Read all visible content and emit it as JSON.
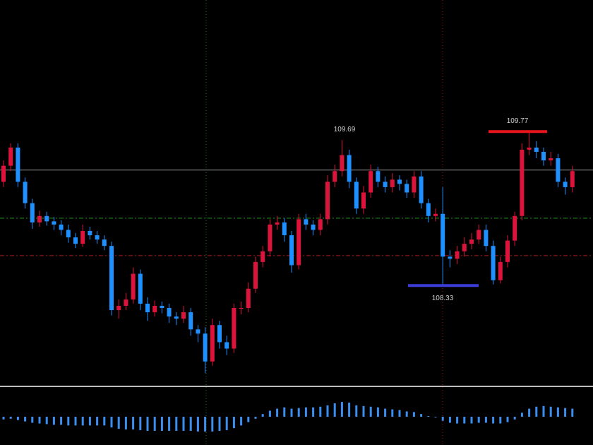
{
  "chart_data": {
    "type": "candlestick",
    "up_color": "#dc143c",
    "down_color": "#1e90ff",
    "ylim": [
      107.4,
      111.0
    ],
    "open": [
      109.3,
      109.45,
      109.62,
      109.3,
      109.1,
      108.92,
      108.98,
      108.93,
      108.9,
      108.85,
      108.78,
      108.72,
      108.84,
      108.8,
      108.76,
      108.7,
      108.1,
      108.14,
      108.2,
      108.44,
      108.16,
      108.08,
      108.14,
      108.12,
      108.04,
      108.02,
      108.08,
      107.92,
      107.88,
      107.62,
      107.96,
      107.8,
      107.74,
      108.12,
      108.12,
      108.3,
      108.55,
      108.65,
      108.9,
      108.92,
      108.8,
      108.52,
      108.95,
      108.9,
      108.85,
      108.95,
      109.3,
      109.4,
      109.55,
      109.3,
      109.05,
      109.2,
      109.4,
      109.3,
      109.25,
      109.32,
      109.28,
      109.2,
      109.35,
      109.1,
      108.98,
      109.0,
      108.6,
      108.58,
      108.65,
      108.72,
      108.76,
      108.85,
      108.7,
      108.38,
      108.55,
      108.75,
      108.98,
      109.6,
      109.62,
      109.58,
      109.5,
      109.52,
      109.3,
      109.25
    ],
    "high": [
      109.5,
      109.66,
      109.66,
      109.34,
      109.14,
      109.03,
      109.02,
      108.97,
      108.94,
      108.9,
      108.82,
      108.9,
      108.88,
      108.84,
      108.8,
      108.74,
      108.2,
      108.26,
      108.5,
      108.48,
      108.22,
      108.19,
      108.18,
      108.16,
      108.08,
      108.14,
      108.12,
      107.96,
      107.94,
      108.02,
      108.0,
      107.86,
      108.16,
      108.18,
      108.36,
      108.6,
      108.7,
      108.95,
      108.98,
      108.96,
      108.84,
      109.0,
      109.0,
      108.94,
      109.0,
      109.36,
      109.46,
      109.69,
      109.6,
      109.34,
      109.26,
      109.46,
      109.44,
      109.35,
      109.38,
      109.36,
      109.32,
      109.4,
      109.4,
      109.14,
      109.05,
      109.25,
      108.66,
      108.7,
      108.78,
      108.82,
      108.9,
      108.9,
      108.75,
      108.6,
      108.8,
      109.02,
      109.66,
      109.77,
      109.68,
      109.62,
      109.58,
      109.56,
      109.34,
      109.45
    ],
    "low": [
      109.25,
      109.4,
      109.25,
      109.05,
      108.86,
      108.88,
      108.89,
      108.85,
      108.8,
      108.73,
      108.68,
      108.69,
      108.76,
      108.72,
      108.66,
      108.05,
      108.02,
      108.1,
      108.16,
      108.1,
      108.0,
      108.04,
      108.07,
      107.98,
      107.96,
      107.98,
      107.86,
      107.8,
      107.51,
      107.58,
      107.74,
      107.68,
      107.7,
      108.06,
      108.08,
      108.26,
      108.5,
      108.6,
      108.85,
      108.74,
      108.45,
      108.48,
      108.85,
      108.8,
      108.8,
      108.9,
      109.25,
      109.35,
      109.24,
      109.0,
      109.0,
      109.15,
      109.25,
      109.2,
      109.2,
      109.22,
      109.15,
      109.15,
      109.05,
      108.92,
      108.93,
      108.33,
      108.5,
      108.53,
      108.6,
      108.67,
      108.72,
      108.65,
      108.34,
      108.35,
      108.5,
      108.7,
      108.94,
      109.55,
      109.52,
      109.45,
      109.45,
      109.25,
      109.18,
      109.2
    ],
    "close": [
      109.45,
      109.62,
      109.3,
      109.1,
      108.92,
      108.98,
      108.93,
      108.9,
      108.85,
      108.78,
      108.72,
      108.84,
      108.8,
      108.76,
      108.7,
      108.1,
      108.14,
      108.2,
      108.44,
      108.16,
      108.08,
      108.14,
      108.12,
      108.04,
      108.02,
      108.08,
      107.92,
      107.88,
      107.62,
      107.96,
      107.8,
      107.74,
      108.12,
      108.12,
      108.3,
      108.55,
      108.65,
      108.9,
      108.92,
      108.8,
      108.52,
      108.95,
      108.9,
      108.85,
      108.95,
      109.3,
      109.4,
      109.55,
      109.3,
      109.05,
      109.2,
      109.4,
      109.3,
      109.25,
      109.32,
      109.28,
      109.2,
      109.35,
      109.1,
      108.98,
      109.0,
      108.6,
      108.58,
      108.65,
      108.72,
      108.76,
      108.85,
      108.7,
      108.38,
      108.55,
      108.75,
      108.98,
      109.6,
      109.62,
      109.58,
      109.5,
      109.52,
      109.3,
      109.25,
      109.4
    ],
    "levels": [
      {
        "value": 109.41,
        "color": "#8c8c8c",
        "dashed": false
      },
      {
        "value": 108.96,
        "color": "#1f9a1f",
        "dashed": true
      },
      {
        "value": 108.61,
        "color": "#b01818",
        "dashed": true
      }
    ],
    "annotations": [
      {
        "value": 109.69,
        "color": null
      },
      {
        "value": 109.77,
        "color": "#e8161c"
      },
      {
        "value": 108.33,
        "color": "#3b3bd6"
      }
    ],
    "indicator": {
      "type": "bar",
      "color": "#3b8ef0",
      "ylim": [
        -0.4,
        0.4
      ],
      "values": [
        -0.04,
        -0.03,
        -0.05,
        -0.07,
        -0.09,
        -0.1,
        -0.11,
        -0.12,
        -0.12,
        -0.13,
        -0.13,
        -0.13,
        -0.13,
        -0.13,
        -0.13,
        -0.16,
        -0.18,
        -0.19,
        -0.19,
        -0.2,
        -0.21,
        -0.21,
        -0.21,
        -0.21,
        -0.21,
        -0.21,
        -0.21,
        -0.22,
        -0.22,
        -0.22,
        -0.21,
        -0.2,
        -0.17,
        -0.13,
        -0.08,
        -0.03,
        0.04,
        0.09,
        0.12,
        0.14,
        0.12,
        0.13,
        0.14,
        0.14,
        0.15,
        0.17,
        0.2,
        0.22,
        0.21,
        0.17,
        0.16,
        0.15,
        0.14,
        0.12,
        0.11,
        0.1,
        0.08,
        0.07,
        0.04,
        0.01,
        -0.01,
        -0.06,
        -0.09,
        -0.1,
        -0.1,
        -0.1,
        -0.09,
        -0.09,
        -0.1,
        -0.1,
        -0.08,
        -0.04,
        0.06,
        0.12,
        0.15,
        0.16,
        0.15,
        0.14,
        0.13,
        0.12
      ]
    }
  }
}
